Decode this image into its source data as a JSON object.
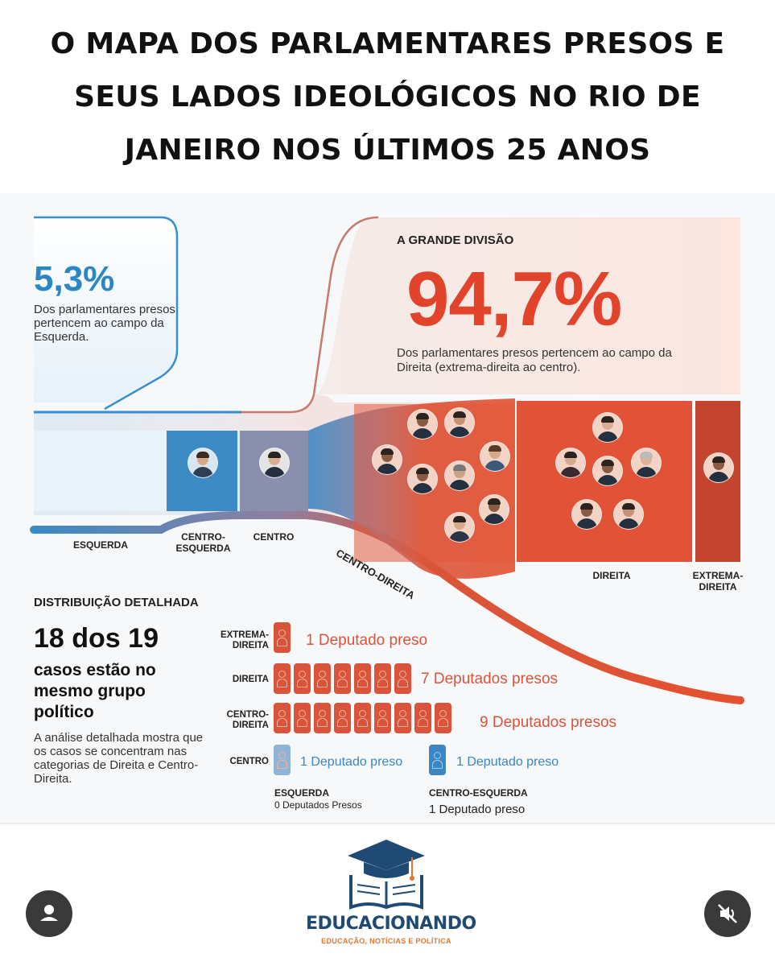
{
  "header": {
    "title_lines": [
      "O MAPA DOS PARLAMENTARES PRESOS E",
      "SEUS LADOS IDEOLÓGICOS NO RIO DE",
      "JANEIRO NOS ÚLTIMOS 25 ANOS"
    ]
  },
  "left_panel": {
    "percent": "5,3%",
    "description": "Dos parlamentares presos pertencem ao campo da Esquerda."
  },
  "right_panel": {
    "label": "A GRANDE DIVISÃO",
    "percent": "94,7%",
    "description": "Dos parlamentares presos pertencem ao campo da Direita (extrema-direita ao centro)."
  },
  "categories": {
    "esquerda": "ESQUERDA",
    "centro_esquerda": "CENTRO-ESQUERDA",
    "centro": "CENTRO",
    "centro_direita": "CENTRO-DIREITA",
    "direita": "DIREITA",
    "extrema_direita": "EXTREMA-DIREITA"
  },
  "distribution": {
    "title": "DISTRIBUIÇÃO DETALHADA",
    "headline": "18 dos 19",
    "subheadline": "casos estão no mesmo grupo político",
    "description": "A análise detalhada mostra que os casos se concentram nas categorias de Direita e Centro-Direita.",
    "rows": [
      {
        "label_line1": "EXTREMA-",
        "label_line2": "DIREITA",
        "count": 1,
        "text": "1 Deputado preso"
      },
      {
        "label_line1": "DIREITA",
        "label_line2": "",
        "count": 7,
        "text": "7 Deputados presos"
      },
      {
        "label_line1": "CENTRO-",
        "label_line2": "DIREITA",
        "count": 9,
        "text": "9 Deputados presos"
      },
      {
        "label_line1": "CENTRO",
        "label_line2": "",
        "count": 1,
        "text": "1 Deputado preso"
      }
    ],
    "centro_esquerda_text": "1 Deputado preso",
    "esquerda": {
      "label": "ESQUERDA",
      "count_text": "0 Deputados Presos"
    },
    "centro_esquerda": {
      "label": "CENTRO-ESQUERDA",
      "count_text": "1 Deputado preso"
    }
  },
  "footer": {
    "brand": "EDUCACIONANDO",
    "tagline": "EDUCAÇÃO, NOTÍCIAS E POLÍTICA"
  },
  "icons": {
    "profile": "person-icon",
    "mute": "speaker-muted-icon"
  },
  "colors": {
    "left_blue": "#2b86c2",
    "right_red": "#e2432b",
    "brand_navy": "#1f4a73",
    "brand_orange": "#e2762c"
  }
}
